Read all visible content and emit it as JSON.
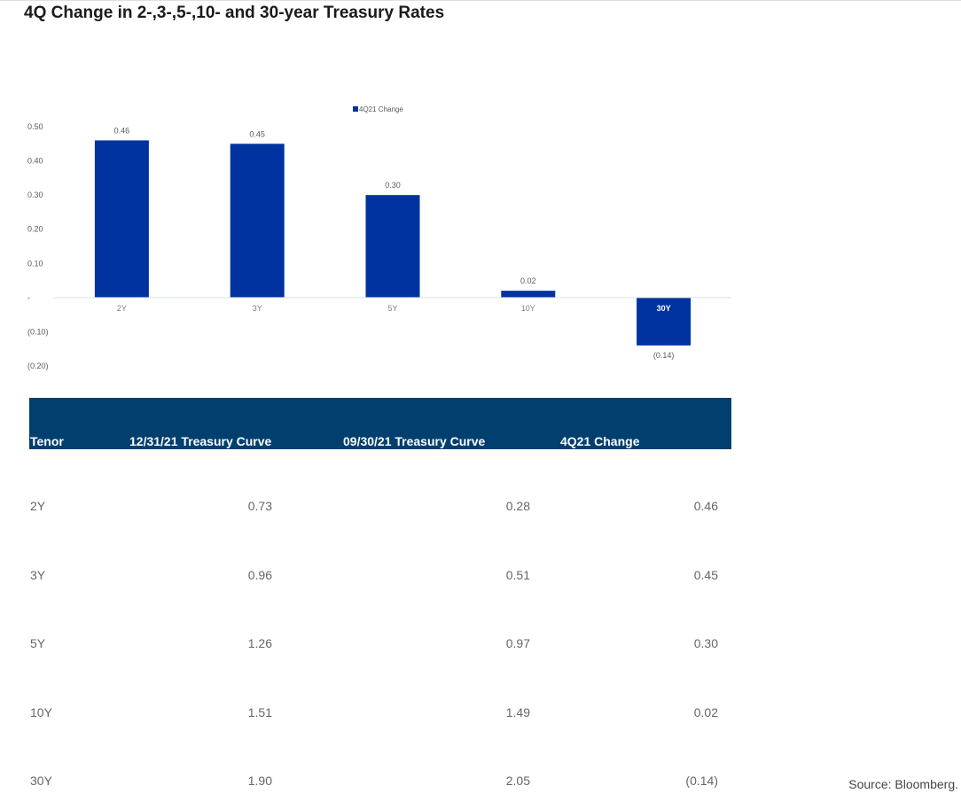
{
  "title": "4Q Change in 2-,3-,5-,10- and 30-year Treasury Rates",
  "chart_data": {
    "type": "bar",
    "categories": [
      "2Y",
      "3Y",
      "5Y",
      "10Y",
      "30Y"
    ],
    "series": [
      {
        "name": "4Q21 Change",
        "values": [
          0.46,
          0.45,
          0.3,
          0.02,
          -0.14
        ],
        "color": "#0033a0"
      }
    ],
    "data_labels": [
      "0.46",
      "0.45",
      "0.30",
      "0.02",
      "(0.14)"
    ],
    "y_ticks": [
      0.5,
      0.4,
      0.3,
      0.2,
      0.1,
      0,
      -0.1,
      -0.2
    ],
    "y_tick_labels": [
      "0.50",
      "0.40",
      "0.30",
      "0.20",
      "0.10",
      "-",
      "(0.10)",
      "(0.20)"
    ],
    "ylim": [
      -0.2,
      0.5
    ],
    "legend_position": "top-center",
    "grid": false
  },
  "table": {
    "headers": [
      "Tenor",
      "12/31/21 Treasury Curve",
      "09/30/21 Treasury Curve",
      "4Q21 Change"
    ],
    "rows": [
      [
        "2Y",
        "0.73",
        "0.28",
        "0.46"
      ],
      [
        "3Y",
        "0.96",
        "0.51",
        "0.45"
      ],
      [
        "5Y",
        "1.26",
        "0.97",
        "0.30"
      ],
      [
        "10Y",
        "1.51",
        "1.49",
        "0.02"
      ],
      [
        "30Y",
        "1.90",
        "2.05",
        "(0.14)"
      ]
    ]
  },
  "source": "Source: Bloomberg.",
  "colors": {
    "bar": "#0033a0",
    "header_bg": "#003f6e",
    "axis_line": "#d9e2ea"
  }
}
